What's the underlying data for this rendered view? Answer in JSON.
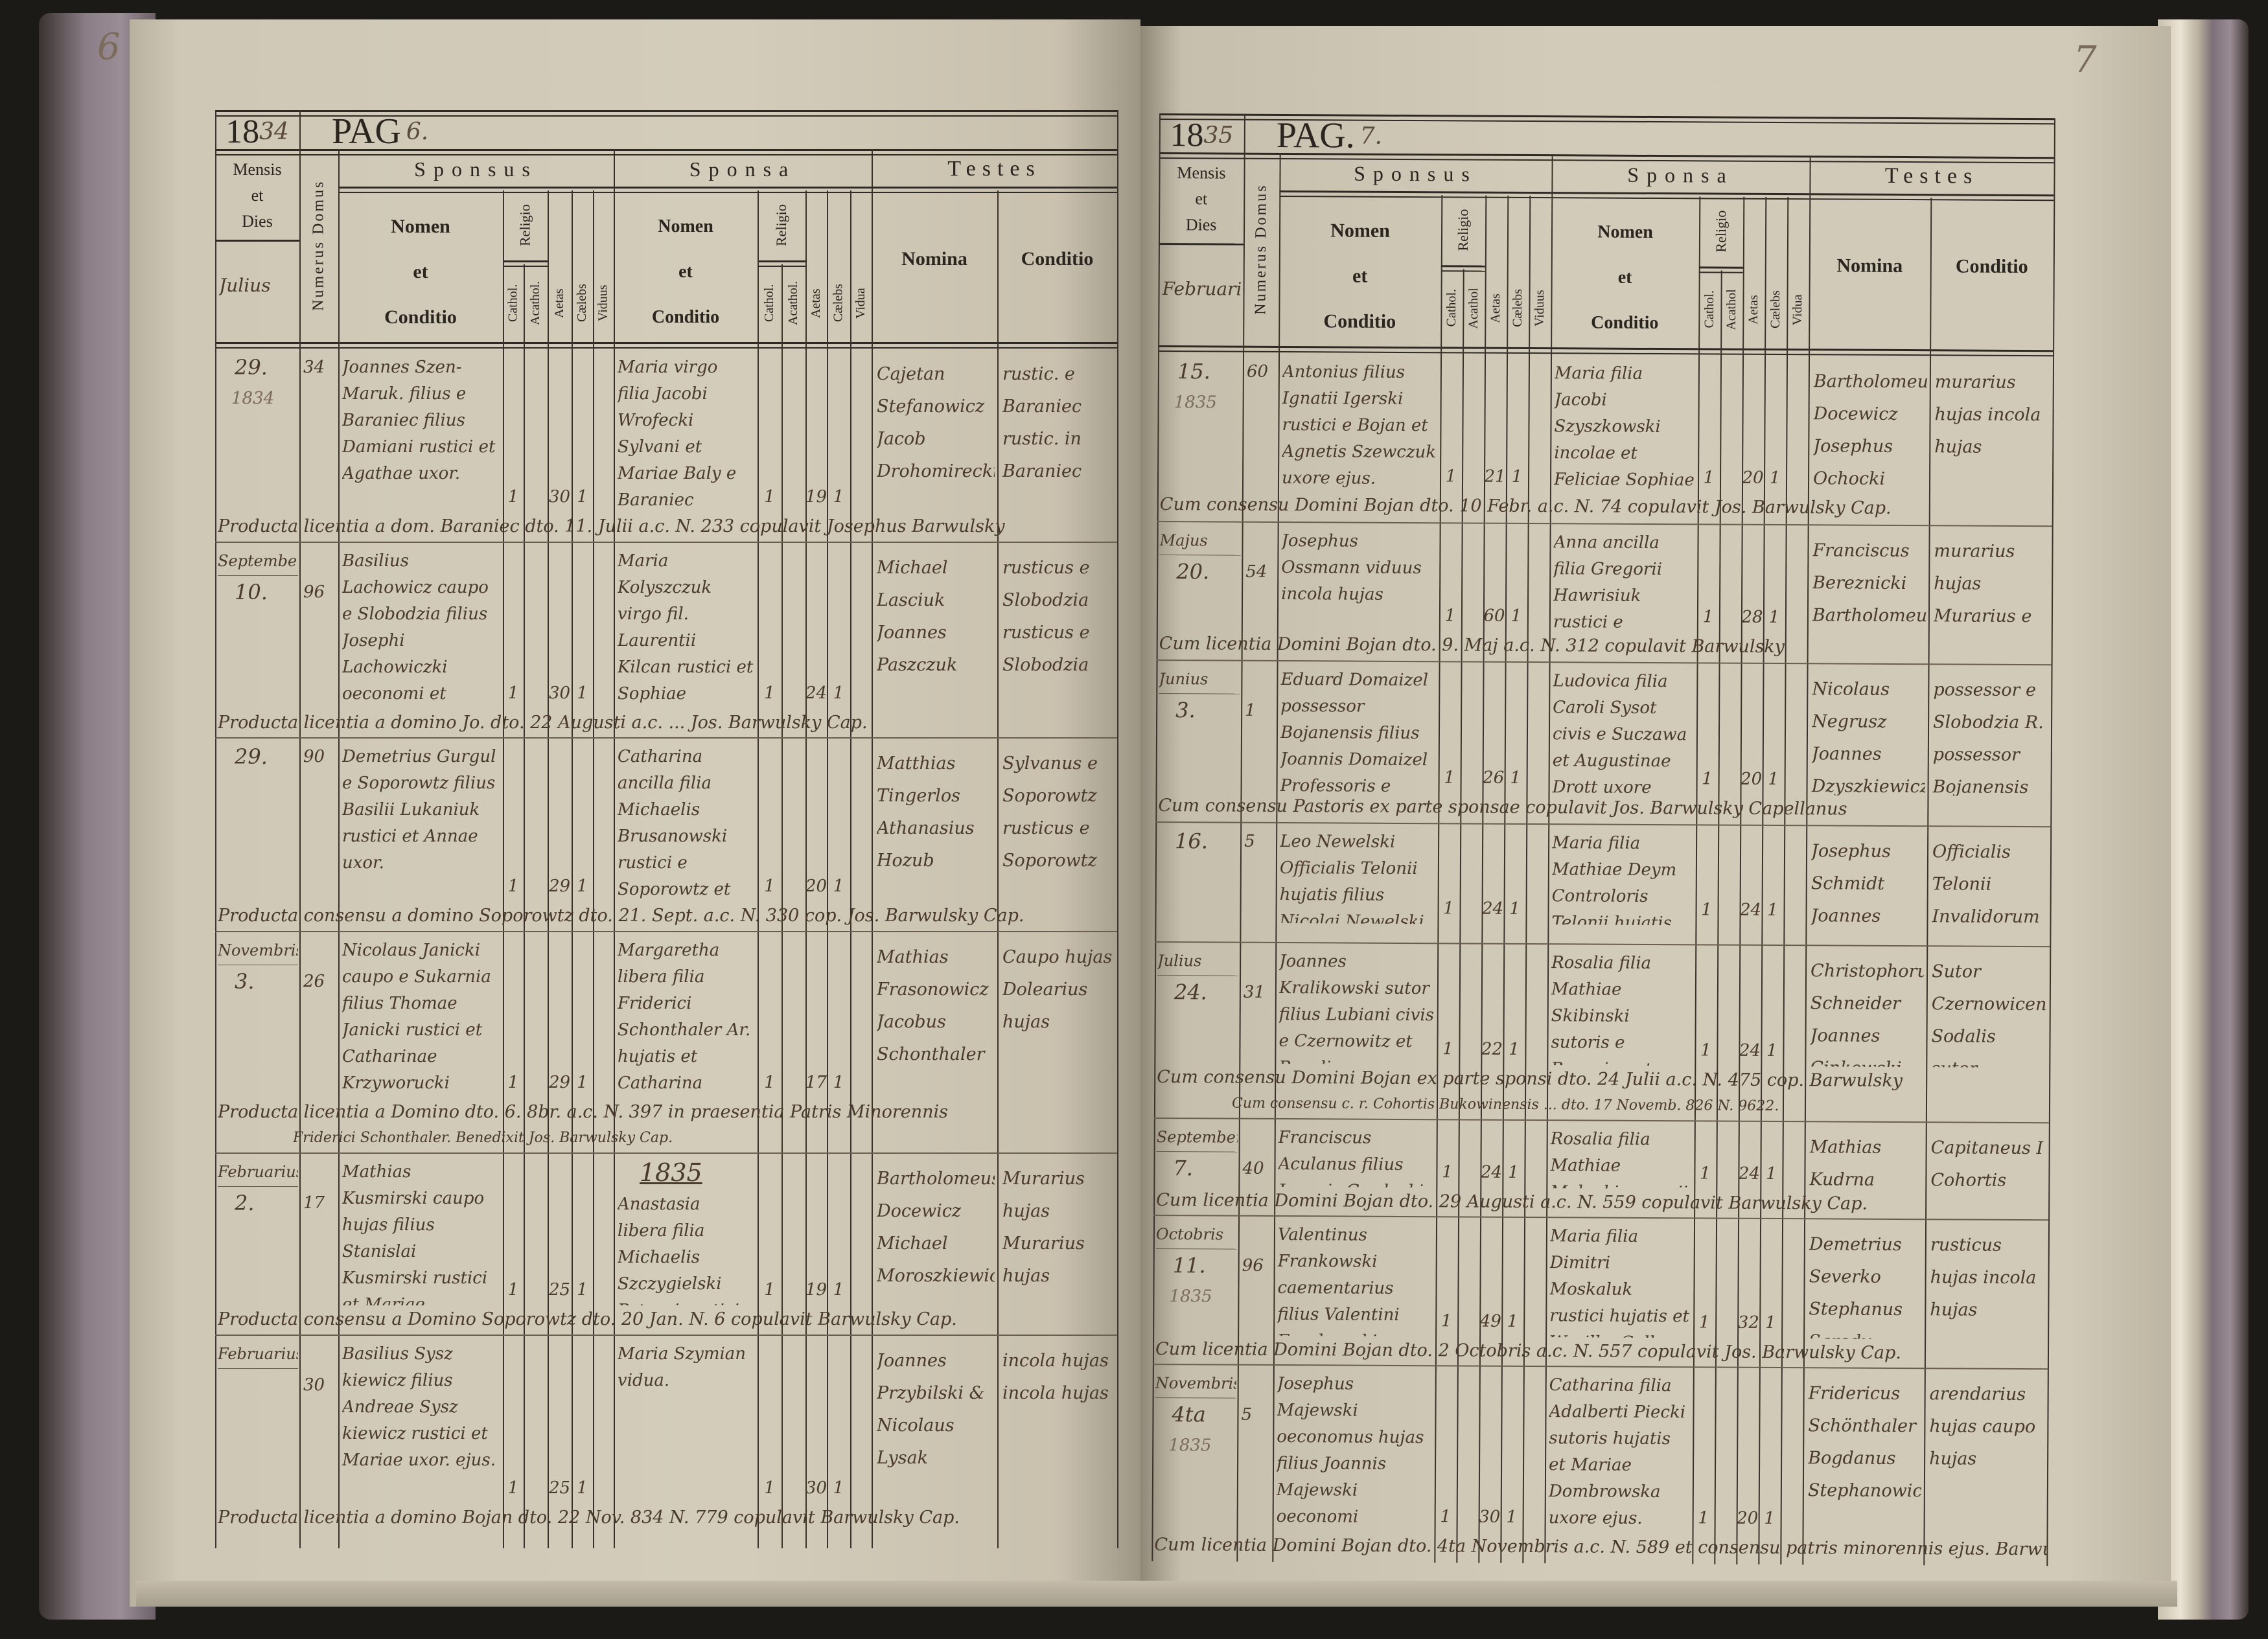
{
  "left_page": {
    "corner_number": "6",
    "year_printed": "18",
    "year_written": "34",
    "pag_label": "PAG",
    "pag_number": "6.",
    "header": {
      "mensis": [
        "Mensis",
        "et",
        "Dies"
      ],
      "month_written": "Julius",
      "numerus_domus": "Numerus Domus",
      "sponsus": "Sponsus",
      "sponsa": "Sponsa",
      "testes": "Testes",
      "nomen": [
        "Nomen",
        "et",
        "Conditio"
      ],
      "religio": "Religio",
      "cathol": "Cathol.",
      "acathol": "Acathol.",
      "aetas": "Aetas",
      "caelebs": "Cælebs",
      "viduus": "Viduus",
      "vidua": "Vidua",
      "nomina": "Nomina",
      "conditio": "Conditio"
    },
    "entries": [
      {
        "month": "",
        "day": "29.",
        "year": "1834",
        "domus": "34",
        "sponsus": "Joannes Szen-Maruk. filius e Baraniec filius Damiani rustici et Agathae uxor.",
        "sponsus_cathol": "1",
        "sponsus_aetas": "30",
        "sponsus_status": "1",
        "sponsa": "Maria virgo filia Jacobi Wrofecki Sylvani et Mariae Baly e Baraniec",
        "sponsa_cathol": "1",
        "sponsa_aetas": "19",
        "sponsa_status": "1",
        "testes": "Cajetan Stefanowicz Jacob Drohomirecki",
        "conditio": "rustic. e Baraniec rustic. in Baraniec",
        "note": [
          "Producta licentia a dom. Baraniec dto. 11. Julii a.c. N. 233 copulavit Josephus Barwulsky"
        ]
      },
      {
        "month": "September",
        "day": "10.",
        "year": "",
        "domus": "96",
        "sponsus": "Basilius Lachowicz caupo e Slobodzia filius Josephi Lachowiczki oeconomi et Mariae Popiel",
        "sponsus_cathol": "1",
        "sponsus_aetas": "30",
        "sponsus_status": "1",
        "sponsa": "Maria Kolyszczuk virgo fil. Laurentii Kilcan rustici et Sophiae",
        "sponsa_cathol": "1",
        "sponsa_aetas": "24",
        "sponsa_status": "1",
        "testes": "Michael Lasciuk Joannes Paszczuk",
        "conditio": "rusticus e Slobodzia rusticus e Slobodzia",
        "note": [
          "Producta licentia a domino Jo. dto. 22 Augusti a.c. ... Jos. Barwulsky Cap."
        ]
      },
      {
        "month": "",
        "day": "29.",
        "year": "",
        "domus": "90",
        "sponsus": "Demetrius Gurgul e Soporowtz filius Basilii Lukaniuk rustici et Annae uxor.",
        "sponsus_cathol": "1",
        "sponsus_aetas": "29",
        "sponsus_status": "1",
        "sponsa": "Catharina ancilla filia Michaelis Brusanowski rustici e Soporowtz et Annae uxor.",
        "sponsa_cathol": "1",
        "sponsa_aetas": "20",
        "sponsa_status": "1",
        "testes": "Matthias Tingerlos Athanasius Hozub",
        "conditio": "Sylvanus e Soporowtz rusticus e Soporowtz",
        "note": [
          "Producta consensu a domino Soporowtz dto. 21. Sept. a.c. N. 330 cop. Jos. Barwulsky Cap."
        ]
      },
      {
        "month": "Novembris",
        "day": "3.",
        "year": "",
        "domus": "26",
        "sponsus": "Nicolaus Janicki caupo e Sukarnia filius Thomae Janicki rustici et Catharinae Krzyworucki",
        "sponsus_cathol": "1",
        "sponsus_aetas": "29",
        "sponsus_status": "1",
        "sponsa": "Margaretha libera filia Friderici Schonthaler Ar. hujatis et Catharina Brzezowska",
        "sponsa_cathol": "1",
        "sponsa_aetas": "17",
        "sponsa_status": "1",
        "testes": "Mathias Frasonowicz Jacobus Schonthaler",
        "conditio": "Caupo hujas Dolearius hujas",
        "note": [
          "Producta licentia a Domino dto. 6. 8br. a.c. N. 397 in praesentia Patris Minorennis",
          "Friderici Schonthaler. Benedixit Jos. Barwulsky Cap."
        ]
      },
      {
        "month": "Februarius",
        "day": "2.",
        "year": "",
        "domus": "17",
        "sponsus": "Mathias Kusmirski caupo hujas filius Stanislai Kusmirski rustici et Mariae Grabatowa",
        "sponsus_cathol": "1",
        "sponsus_aetas": "25",
        "sponsus_status": "1",
        "sponsa_year": "1835",
        "sponsa": "Anastasia libera filia Michaelis Szczygielski Petroni rustici et Mariae uxoris ejus.",
        "sponsa_cathol": "1",
        "sponsa_aetas": "19",
        "sponsa_status": "1",
        "testes": "Bartholomeus Docewicz Michael Moroszkiewicz",
        "conditio": "Murarius hujas Murarius hujas",
        "note": [
          "Producta consensu a Domino Soporowtz dto. 20 Jan. N. 6 copulavit Barwulsky Cap."
        ]
      },
      {
        "month": "Februarius",
        "day": "",
        "year": "",
        "domus": "30",
        "sponsus": "Basilius Sysz kiewicz filius Andreae Sysz kiewicz rustici et Mariae uxor. ejus.",
        "sponsus_cathol": "1",
        "sponsus_aetas": "25",
        "sponsus_status": "1",
        "sponsa": "Maria Szymian vidua.",
        "sponsa_cathol": "1",
        "sponsa_aetas": "30",
        "sponsa_status": "1",
        "testes": "Joannes Przybilski & Nicolaus Lysak",
        "conditio": "incola hujas incola hujas",
        "note": [
          "Producta licentia a domino Bojan dto. 22 Nov. 834 N. 779 copulavit Barwulsky Cap."
        ]
      }
    ]
  },
  "right_page": {
    "corner_number": "7",
    "year_printed": "18",
    "year_written": "35",
    "pag_label": "PAG.",
    "pag_number": "7.",
    "header": {
      "mensis": [
        "Mensis",
        "et",
        "Dies"
      ],
      "month_written": "Februarius",
      "numerus_domus": "Numerus Domus",
      "sponsus": "Sponsus",
      "sponsa": "Sponsa",
      "testes": "Testes",
      "nomen": [
        "Nomen",
        "et",
        "Conditio"
      ],
      "religio": "Religio",
      "cathol": "Cathol.",
      "acathol": "Acathol",
      "aetas": "Aetas",
      "caelebs": "Cælebs",
      "viduus": "Viduus",
      "vidua": "Vidua",
      "nomina": "Nomina",
      "conditio": "Conditio"
    },
    "entries": [
      {
        "month": "",
        "day": "15.",
        "year": "1835",
        "domus": "60",
        "sponsus": "Antonius filius Ignatii Igerski rustici e Bojan et Agnetis Szewczuk uxore ejus.",
        "sponsus_cathol": "1",
        "sponsus_aetas": "21",
        "sponsus_status": "1",
        "sponsa": "Maria filia Jacobi Szyszkowski incolae et Feliciae Sophiae Szarczuk uxore ejus.",
        "sponsa_cathol": "1",
        "sponsa_aetas": "20",
        "sponsa_status": "1",
        "testes": "Bartholomeus Docewicz Josephus Ochocki",
        "conditio": "murarius hujas incola hujas",
        "note": [
          "Cum consensu Domini Bojan dto. 10 Febr. a.c. N. 74 copulavit Jos. Barwulsky Cap."
        ]
      },
      {
        "month": "Majus",
        "day": "20.",
        "year": "",
        "domus": "54",
        "sponsus": "Josephus Ossmann viduus incola hujas",
        "sponsus_cathol": "1",
        "sponsus_aetas": "60",
        "sponsus_status": "1",
        "sponsa": "Anna ancilla filia Gregorii Hawrisiuk rustici e Bohorodzan et Anastasiae uxore ejus.",
        "sponsa_cathol": "1",
        "sponsa_aetas": "28",
        "sponsa_status": "1",
        "testes": "Franciscus Bereznicki Bartholomeus Docewicz",
        "conditio": "murarius hujas Murarius e Bojan",
        "note": [
          "Cum licentia Domini Bojan dto. 9. Maj a.c. N. 312 copulavit Barwulsky"
        ]
      },
      {
        "month": "Junius",
        "day": "3.",
        "year": "",
        "domus": "1",
        "sponsus": "Eduard Domaizel possessor Bojanensis filius Joannis Domaizel Professoris e Galicia et Annae Bürel uxore ejus",
        "sponsus_cathol": "1",
        "sponsus_aetas": "26",
        "sponsus_status": "1",
        "sponsa": "Ludovica filia Caroli Sysot civis e Suczawa et Augustinae Drott uxore ejus.",
        "sponsa_cathol": "1",
        "sponsa_aetas": "20",
        "sponsa_status": "1",
        "testes": "Nicolaus Negrusz Joannes Dzyszkiewicz",
        "conditio": "possessor e Slobodzia R. possessor Bojanensis",
        "note": [
          "Cum consensu Pastoris ex parte sponsae copulavit Jos. Barwulsky Capellanus"
        ]
      },
      {
        "month": "",
        "day": "16.",
        "year": "",
        "domus": "5",
        "sponsus": "Leo Newelski Officialis Telonii hujatis filius Nicolai Newelski e Galicia et Teklae Kuranska uxore ejus.",
        "sponsus_cathol": "1",
        "sponsus_aetas": "24",
        "sponsus_status": "1",
        "sponsa": "Maria filia Mathiae Deym Controloris Telonii hujatis et Franciscae uxore ejus",
        "sponsa_cathol": "1",
        "sponsa_aetas": "24",
        "sponsa_status": "1",
        "testes": "Josephus Schmidt Joannes Osucki",
        "conditio": "Officialis Telonii Invalidorum Czernowicensis controlor Telonii Bojan",
        "note": []
      },
      {
        "month": "Julius",
        "day": "24.",
        "year": "",
        "domus": "31",
        "sponsus": "Joannes Kralikowski sutor filius Lubiani civis e Czernowitz et Rosaliae Piotrkowska uxore ejus.",
        "sponsus_cathol": "1",
        "sponsus_aetas": "22",
        "sponsus_status": "1",
        "sponsa": "Rosalia filia Mathiae Skibinski sutoris e Bucovina et Magdalenae Skibinska uxore ejus",
        "sponsa_cathol": "1",
        "sponsa_aetas": "24",
        "sponsa_status": "1",
        "testes": "Christophorus Schneider Joannes Cinkowski",
        "conditio": "Sutor Czernowicensis Sodalis sutor Czernowicensis",
        "note": [
          "Cum consensu Domini Bojan ex parte sponsi dto. 24 Julii a.c. N. 475 cop. Barwulsky",
          "Cum consensu c. r. Cohortis Bukowinensis ... dto. 17 Novemb. 826 N. 9622."
        ]
      },
      {
        "month": "September",
        "day": "7.",
        "year": "",
        "domus": "40",
        "sponsus": "Franciscus Aculanus filius Joannis Grodecki incolae e Galicia et Mariae uxore ejus.",
        "sponsus_cathol": "1",
        "sponsus_aetas": "24",
        "sponsus_status": "1",
        "sponsa": "Rosalia filia Mathiae Malucki murarii hujatis et Marianna uxore ejus.",
        "sponsa_cathol": "1",
        "sponsa_aetas": "24",
        "sponsa_status": "1",
        "testes": "Mathias Kudrna Antonius Wenger",
        "conditio": "Capitaneus I Cohortis Ductor Contumaciae Bojan",
        "note": [
          "Cum licentia Domini Bojan dto. 29 Augusti a.c. N. 559 copulavit Barwulsky Cap."
        ]
      },
      {
        "month": "Octobris",
        "day": "11.",
        "year": "1835",
        "domus": "96",
        "sponsus": "Valentinus Frankowski caementarius filius Valentini Frankowski incolae e Sarolki in Galicia et Mariae uxore ejus.",
        "sponsus_cathol": "1",
        "sponsus_aetas": "49",
        "sponsus_status": "1",
        "sponsa": "Maria filia Dimitri Moskaluk rustici hujatis et Wasilka Galka uxore ejus.",
        "sponsa_cathol": "1",
        "sponsa_aetas": "32",
        "sponsa_status": "1",
        "testes": "Demetrius Severko Stephanus Sarody",
        "conditio": "rusticus hujas incola hujas",
        "note": [
          "Cum licentia Domini Bojan dto. 2 Octobris a.c. N. 557 copulavit Jos. Barwulsky Cap."
        ]
      },
      {
        "month": "Novembris",
        "day": "4ta",
        "year": "1835",
        "domus": "5",
        "sponsus": "Josephus Majewski oeconomus hujas filius Joannis Majewski oeconomi Mikulince in Galicia et Catharinae Koraczynska uxore ejus.",
        "sponsus_cathol": "1",
        "sponsus_aetas": "30",
        "sponsus_status": "1",
        "sponsa": "Catharina filia Adalberti Piecki sutoris hujatis et Mariae Dombrowska uxore ejus.",
        "sponsa_cathol": "1",
        "sponsa_aetas": "20",
        "sponsa_status": "1",
        "testes": "Fridericus Schönthaler Bogdanus Stephanowicz",
        "conditio": "arendarius hujas caupo hujas",
        "note": [
          "Cum licentia Domini Bojan dto. 4ta Novembris a.c. N. 589 et consensu patris minorennis ejus. Barwulsky Cap."
        ]
      }
    ]
  }
}
